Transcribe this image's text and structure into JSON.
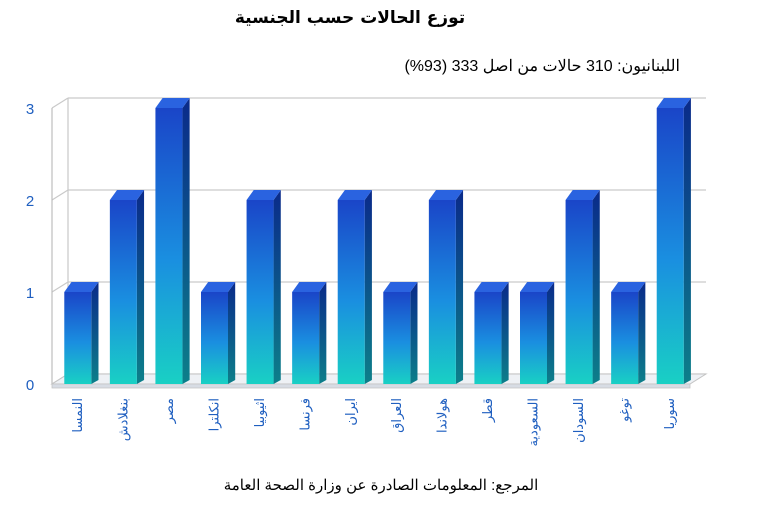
{
  "chart_data": {
    "type": "bar",
    "title": "توزع الحالات حسب الجنسية",
    "subtitle": "اللبنانيون: 310 حالات من اصل 333 (93%)",
    "categories": [
      "النمسا",
      "بنغلادش",
      "مصر",
      "انكلترا",
      "اثيوبيا",
      "فرنسا",
      "ايران",
      "العراق",
      "هولاندا",
      "قطر",
      "السعودية",
      "السودان",
      "توغو",
      "سوريا"
    ],
    "values": [
      1,
      2,
      3,
      1,
      2,
      1,
      2,
      1,
      2,
      1,
      1,
      2,
      1,
      3
    ],
    "ylim": [
      0,
      3
    ],
    "yticks": [
      0,
      1,
      2,
      3
    ],
    "grid": true,
    "colors": {
      "bar_front_top": "#1a4fd0",
      "bar_front_bottom": "#19c6c8",
      "bar_side": "#0b2c8a",
      "bar_top": "#2a63e0",
      "tick_label": "#1f5fc0",
      "grid": "#c8c8c8"
    }
  },
  "source": "المرجع: المعلومات الصادرة عن وزارة الصحة العامة"
}
